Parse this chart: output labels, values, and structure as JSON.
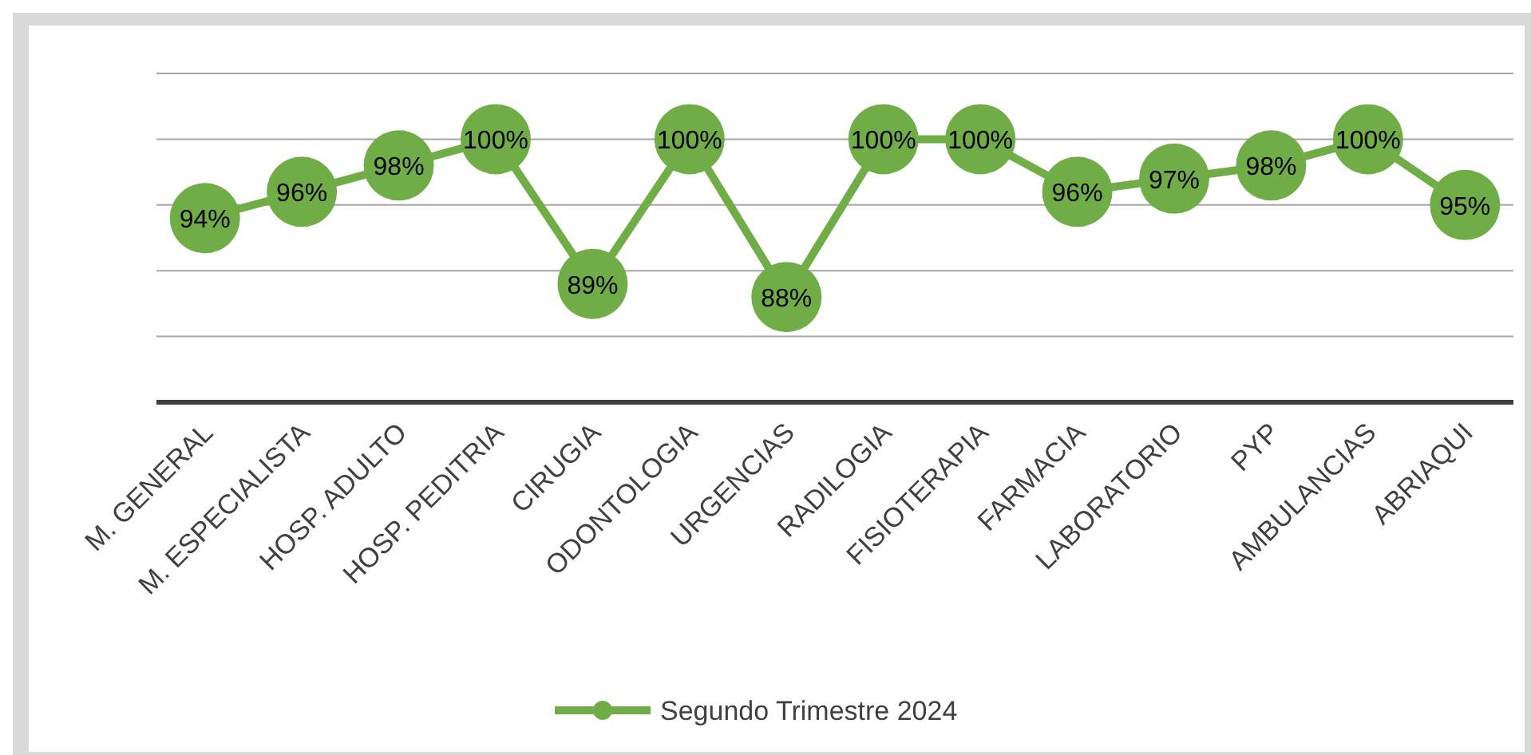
{
  "chart_data": {
    "type": "line",
    "categories": [
      "M. GENERAL",
      "M. ESPECIALISTA",
      "HOSP. ADULTO",
      "HOSP. PEDITRIA",
      "CIRUGIA",
      "ODONTOLOGIA",
      "URGENCIAS",
      "RADILOGIA",
      "FISIOTERAPIA",
      "FARMACIA",
      "LABORATORIO",
      "PYP",
      "AMBULANCIAS",
      "ABRIAQUI"
    ],
    "series": [
      {
        "name": "Segundo Trimestre 2024",
        "color": "#70ad47",
        "values": [
          94,
          96,
          98,
          100,
          89,
          100,
          88,
          100,
          100,
          96,
          97,
          98,
          100,
          95
        ],
        "value_labels": [
          "94%",
          "96%",
          "98%",
          "100%",
          "89%",
          "100%",
          "88%",
          "100%",
          "100%",
          "96%",
          "97%",
          "98%",
          "100%",
          "95%"
        ]
      }
    ],
    "ylim": [
      80,
      105
    ],
    "yticks": [
      {
        "value": 80,
        "label": null
      },
      {
        "value": 85,
        "label": null
      },
      {
        "value": 90,
        "label": null
      },
      {
        "value": 95,
        "label": null
      },
      {
        "value": 100,
        "label": null
      },
      {
        "value": 105,
        "label": null
      }
    ],
    "tick_labels": "x",
    "grid": "y",
    "legend": "bottom",
    "marker": "circle",
    "line_style": "solid"
  }
}
